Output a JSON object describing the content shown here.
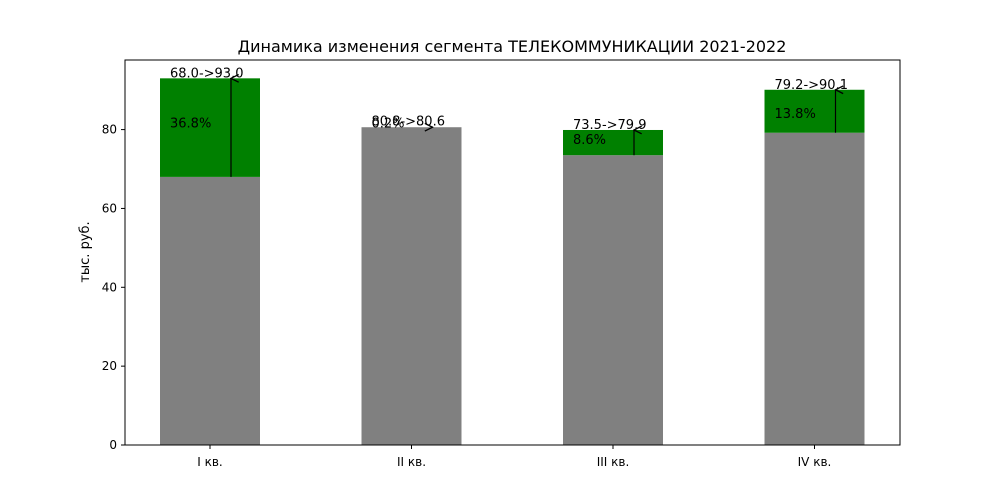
{
  "chart_data": {
    "type": "bar",
    "title": "Динамика изменения сегмента ТЕЛЕКОММУНИКАЦИИ 2021-2022",
    "xlabel": "",
    "ylabel": "тыс. руб.",
    "ylim": [
      0,
      97.65
    ],
    "yticks": [
      "0",
      "20",
      "40",
      "60",
      "80"
    ],
    "categories": [
      "I кв.",
      "II кв.",
      "III кв.",
      "IV кв."
    ],
    "series": [
      {
        "values": [
          68.0,
          80.8,
          73.5,
          79.2
        ]
      },
      {
        "values": [
          93.0,
          80.6,
          79.9,
          90.1
        ]
      }
    ],
    "labels": [
      "68.0->93.0",
      "80.8->80.6",
      "73.5->79.9",
      "79.2->90.1"
    ],
    "pct_labels": [
      "36.8%",
      "0.2%",
      "8.6%",
      "13.8%"
    ],
    "colors": {
      "base": "#808080",
      "increase": "#008000",
      "arrow": "#000000"
    },
    "grid": false,
    "legend": "none"
  }
}
